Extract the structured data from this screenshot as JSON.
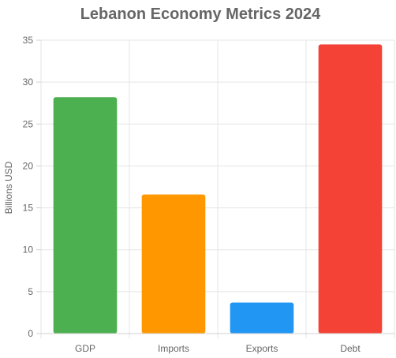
{
  "chart_data": {
    "type": "bar",
    "title": "Lebanon Economy Metrics 2024",
    "xlabel": "",
    "ylabel": "Billions USD",
    "categories": [
      "GDP",
      "Imports",
      "Exports",
      "Debt"
    ],
    "values": [
      28.2,
      16.6,
      3.7,
      34.5
    ],
    "colors": [
      "#4caf50",
      "#ff9800",
      "#2196f3",
      "#f44336"
    ],
    "ylim": [
      0,
      35
    ],
    "yticks": [
      0,
      5,
      10,
      15,
      20,
      25,
      30,
      35
    ],
    "grid": true,
    "legend": "none"
  }
}
